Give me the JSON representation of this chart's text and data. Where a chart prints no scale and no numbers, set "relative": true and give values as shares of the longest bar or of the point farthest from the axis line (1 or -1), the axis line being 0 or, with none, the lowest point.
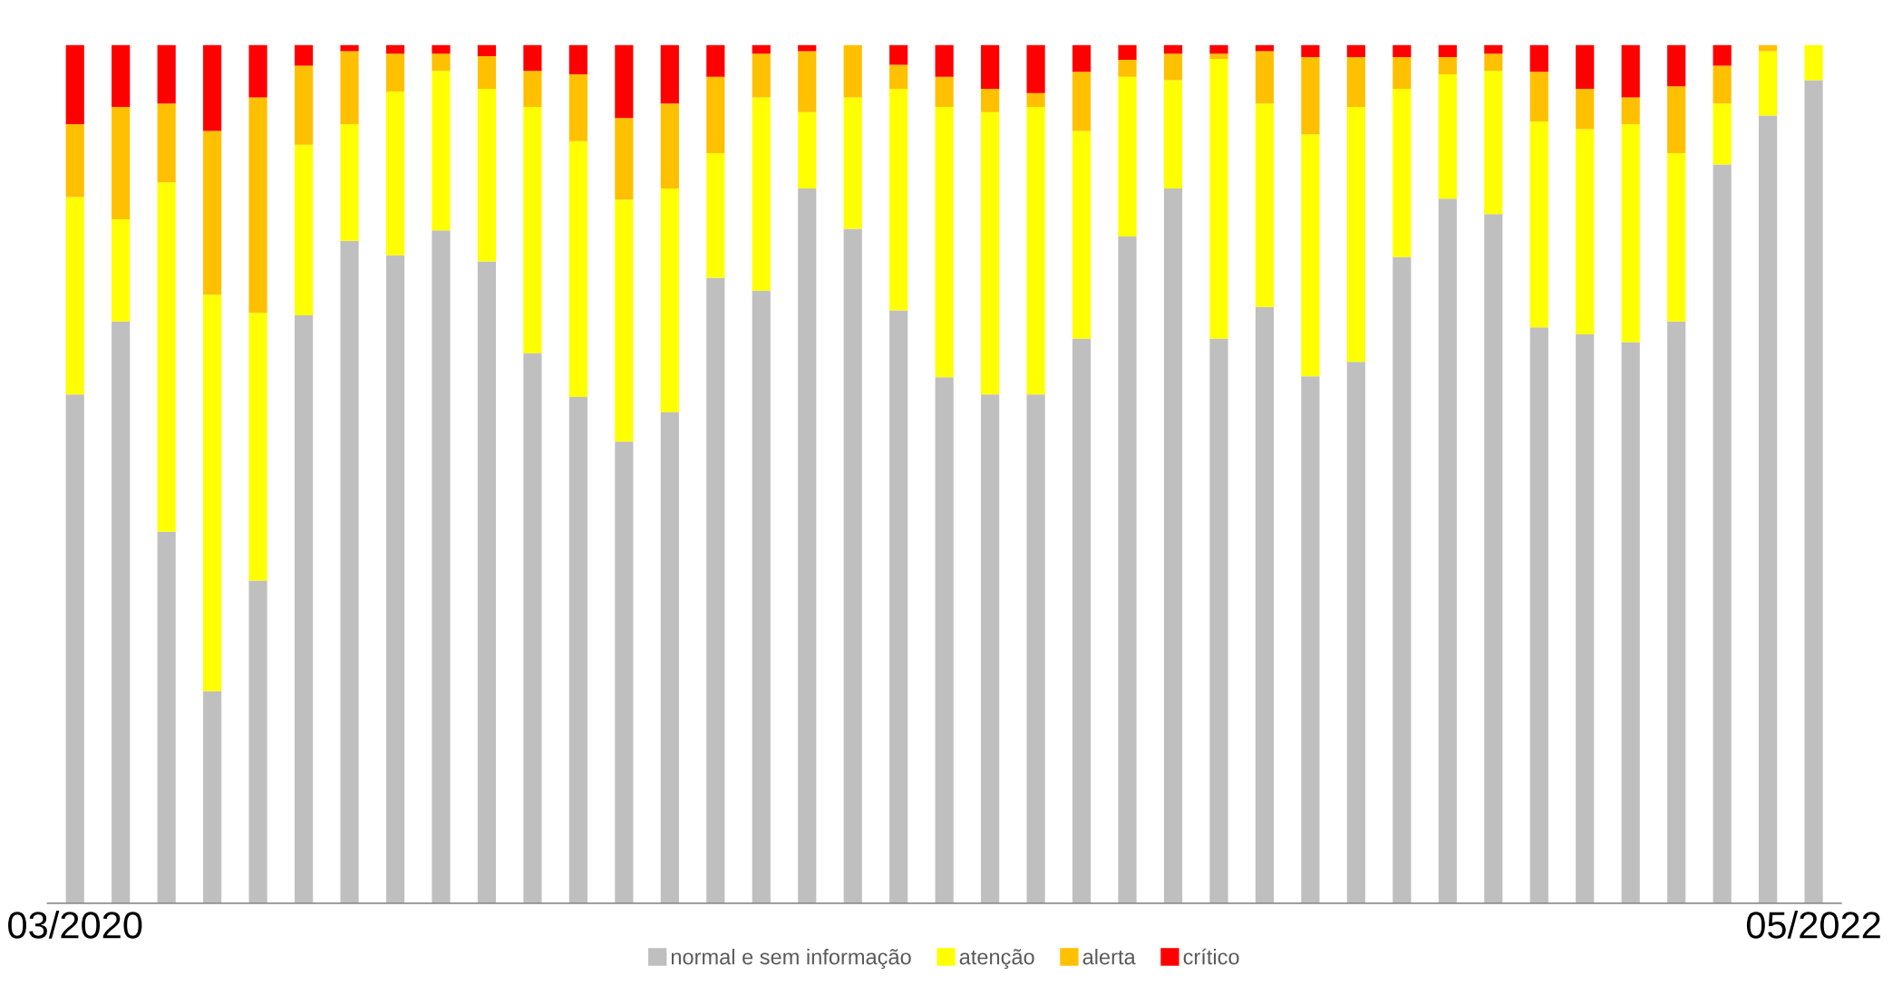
{
  "chart_data": {
    "type": "bar",
    "stacked": true,
    "relative": true,
    "legend": "bottom",
    "categories": [
      "03/2020",
      null,
      null,
      null,
      null,
      null,
      null,
      null,
      null,
      null,
      null,
      null,
      null,
      null,
      null,
      null,
      null,
      null,
      null,
      null,
      null,
      null,
      null,
      null,
      null,
      null,
      null,
      null,
      null,
      null,
      null,
      null,
      null,
      null,
      null,
      null,
      null,
      null,
      "05/2022"
    ],
    "series": [
      {
        "name": "normal e sem informação",
        "color": "#bfbfbf",
        "values": [
          0.593,
          0.678,
          0.433,
          0.247,
          0.376,
          0.685,
          0.772,
          0.755,
          0.784,
          0.748,
          0.641,
          0.59,
          0.538,
          0.572,
          0.729,
          0.714,
          0.833,
          0.786,
          0.691,
          0.613,
          0.593,
          0.593,
          0.658,
          0.777,
          0.833,
          0.658,
          0.695,
          0.614,
          0.631,
          0.753,
          0.821,
          0.803,
          0.671,
          0.663,
          0.654,
          0.678,
          0.861,
          0.918,
          0.959
        ]
      },
      {
        "name": "atenção",
        "color": "#ffff00",
        "values": [
          0.23,
          0.119,
          0.407,
          0.462,
          0.312,
          0.199,
          0.136,
          0.191,
          0.186,
          0.201,
          0.287,
          0.298,
          0.282,
          0.261,
          0.145,
          0.225,
          0.089,
          0.153,
          0.258,
          0.315,
          0.329,
          0.335,
          0.242,
          0.186,
          0.126,
          0.326,
          0.237,
          0.282,
          0.297,
          0.196,
          0.145,
          0.167,
          0.24,
          0.239,
          0.254,
          0.196,
          0.071,
          0.075,
          0.041
        ]
      },
      {
        "name": "alerta",
        "color": "#ffc000",
        "values": [
          0.085,
          0.131,
          0.092,
          0.191,
          0.251,
          0.092,
          0.085,
          0.044,
          0.02,
          0.038,
          0.042,
          0.078,
          0.095,
          0.099,
          0.089,
          0.051,
          0.071,
          0.061,
          0.028,
          0.035,
          0.027,
          0.016,
          0.069,
          0.02,
          0.031,
          0.006,
          0.061,
          0.09,
          0.058,
          0.037,
          0.02,
          0.02,
          0.058,
          0.047,
          0.031,
          0.078,
          0.044,
          0.007,
          0
        ]
      },
      {
        "name": "crítico",
        "color": "#ff0000",
        "values": [
          0.092,
          0.072,
          0.068,
          0.1,
          0.061,
          0.024,
          0.007,
          0.01,
          0.01,
          0.013,
          0.03,
          0.034,
          0.085,
          0.068,
          0.037,
          0.01,
          0.007,
          0,
          0.023,
          0.037,
          0.051,
          0.056,
          0.031,
          0.017,
          0.01,
          0.01,
          0.007,
          0.014,
          0.014,
          0.014,
          0.014,
          0.01,
          0.031,
          0.051,
          0.061,
          0.048,
          0.024,
          0,
          0
        ]
      }
    ]
  }
}
